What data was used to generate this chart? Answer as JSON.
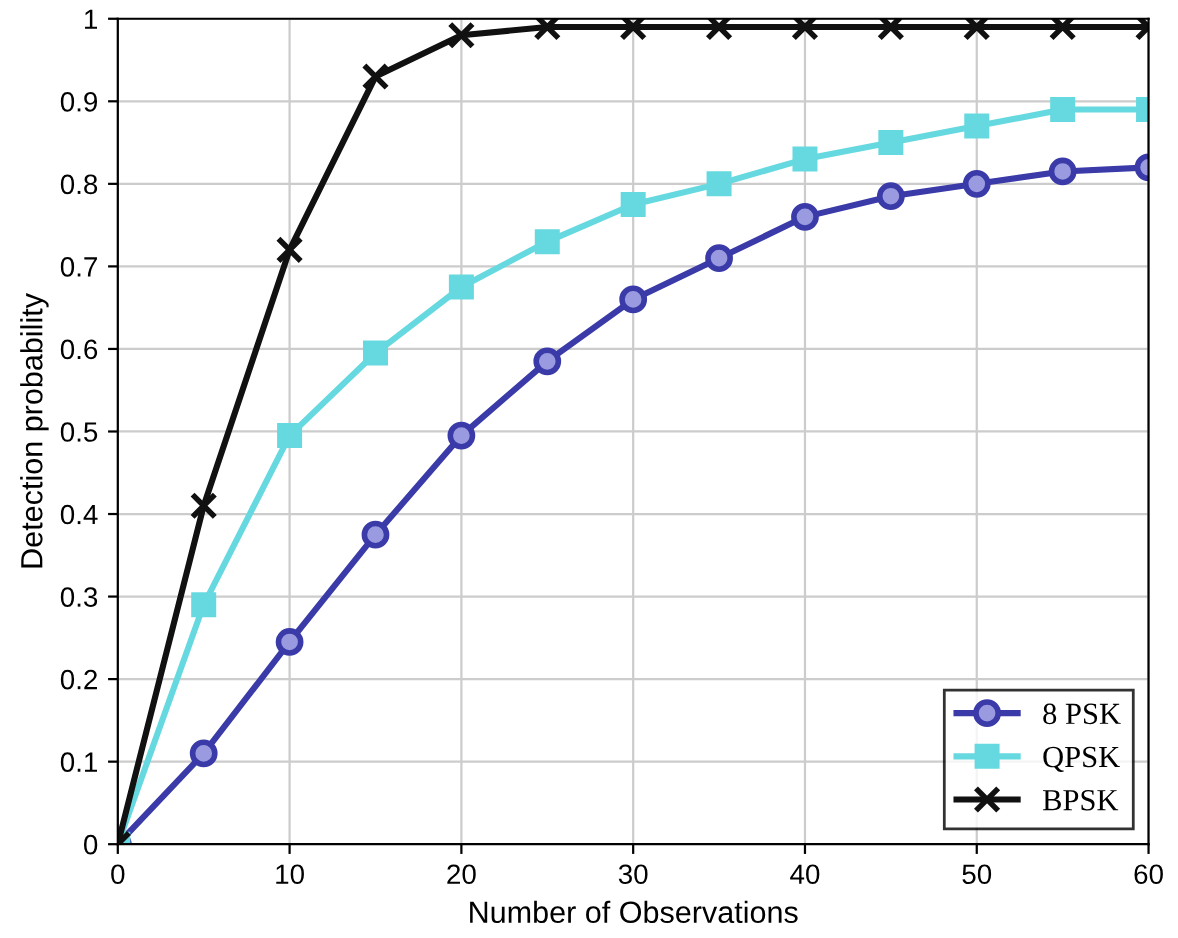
{
  "chart_data": {
    "type": "line",
    "xlabel": "Number of Observations",
    "ylabel": "Detection probability",
    "x": [
      0,
      5,
      10,
      15,
      20,
      25,
      30,
      35,
      40,
      45,
      50,
      55,
      60
    ],
    "series": [
      {
        "name": "8 PSK",
        "color": "#3a3aa8",
        "marker": "circle",
        "values": [
          0,
          0.11,
          0.245,
          0.375,
          0.495,
          0.585,
          0.66,
          0.71,
          0.76,
          0.785,
          0.8,
          0.815,
          0.82
        ]
      },
      {
        "name": "QPSK",
        "color": "#66d9e0",
        "marker": "square",
        "values": [
          0,
          0.29,
          0.495,
          0.595,
          0.675,
          0.73,
          0.775,
          0.8,
          0.83,
          0.85,
          0.87,
          0.89,
          0.89
        ]
      },
      {
        "name": "BPSK",
        "color": "#111111",
        "marker": "cross",
        "values": [
          0,
          0.41,
          0.72,
          0.93,
          0.98,
          0.99,
          0.99,
          0.99,
          0.99,
          0.99,
          0.99,
          0.99,
          0.99
        ]
      }
    ],
    "xlim": [
      0,
      60
    ],
    "xticks": [
      0,
      10,
      20,
      30,
      40,
      50,
      60
    ],
    "ylim": [
      0,
      1
    ],
    "yticks": [
      0,
      0.1,
      0.2,
      0.3,
      0.4,
      0.5,
      0.6,
      0.7,
      0.8,
      0.9,
      1
    ],
    "grid": true,
    "legend": "bottom right",
    "line_style": "solid"
  }
}
